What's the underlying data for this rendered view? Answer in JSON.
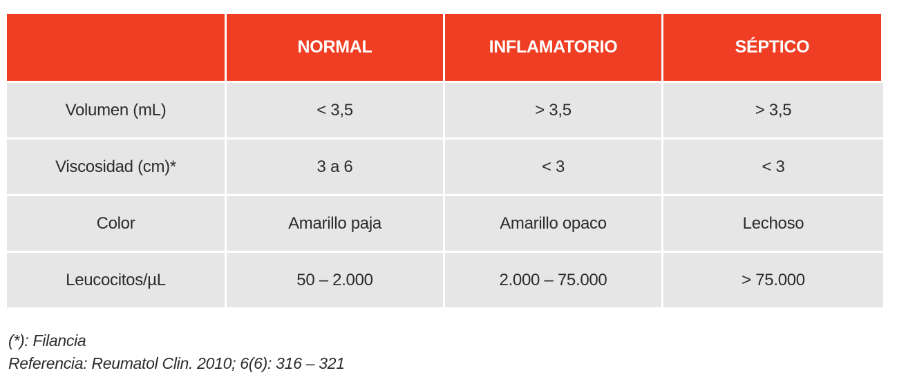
{
  "table": {
    "headers": [
      "",
      "NORMAL",
      "INFLAMATORIO",
      "SÉPTICO"
    ],
    "rows": [
      [
        "Volumen (mL)",
        "< 3,5",
        "> 3,5",
        "> 3,5"
      ],
      [
        "Viscosidad (cm)*",
        "3 a 6",
        "< 3",
        "< 3"
      ],
      [
        "Color",
        "Amarillo paja",
        "Amarillo opaco",
        "Lechoso"
      ],
      [
        "Leucocitos/µL",
        "50 – 2.000",
        "2.000 – 75.000",
        "> 75.000"
      ]
    ]
  },
  "notes": {
    "footnote": "(*): Filancia",
    "reference": "Referencia: Reumatol Clin. 2010; 6(6): 316 – 321"
  },
  "colors": {
    "header_bg": "#ef3e23",
    "row_bg": "#e6e6e7"
  }
}
